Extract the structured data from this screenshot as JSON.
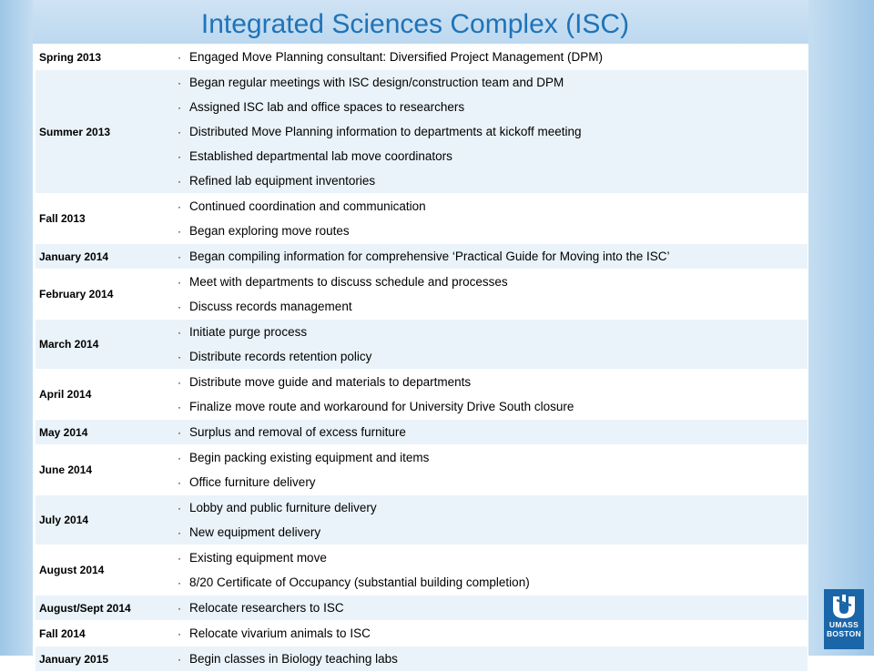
{
  "slide": {
    "title": "Integrated Sciences Complex (ISC)",
    "logo": {
      "line1": "UMASS",
      "line2": "BOSTON"
    }
  },
  "bullet_char": "·",
  "timeline": [
    {
      "period": "Spring 2013",
      "items": [
        "Engaged Move Planning consultant: Diversified Project Management (DPM)"
      ]
    },
    {
      "period": "Summer 2013",
      "items": [
        "Began regular meetings with ISC design/construction team and DPM",
        "Assigned ISC lab and office spaces to researchers",
        "Distributed Move Planning information to departments at kickoff meeting",
        "Established departmental lab move coordinators",
        "Refined lab equipment inventories"
      ]
    },
    {
      "period": "Fall 2013",
      "items": [
        "Continued coordination and communication",
        "Began exploring move routes"
      ]
    },
    {
      "period": "January 2014",
      "items": [
        "Began compiling information for comprehensive ‘Practical Guide for Moving into the ISC’"
      ]
    },
    {
      "period": "February 2014",
      "items": [
        "Meet with departments to discuss schedule and processes",
        "Discuss records management"
      ]
    },
    {
      "period": "March 2014",
      "items": [
        "Initiate purge process",
        "Distribute records retention policy"
      ]
    },
    {
      "period": "April 2014",
      "items": [
        "Distribute move guide and materials to departments",
        "Finalize move route and workaround for University Drive South closure"
      ]
    },
    {
      "period": "May 2014",
      "items": [
        "Surplus and removal of excess furniture"
      ]
    },
    {
      "period": "June 2014",
      "items": [
        "Begin packing existing equipment and items",
        "Office furniture delivery"
      ]
    },
    {
      "period": "July 2014",
      "items": [
        "Lobby and public furniture delivery",
        "New equipment delivery"
      ]
    },
    {
      "period": "August 2014",
      "items": [
        "Existing equipment move",
        "8/20 Certificate of Occupancy (substantial building completion)"
      ]
    },
    {
      "period": "August/Sept 2014",
      "items": [
        "Relocate researchers to ISC"
      ]
    },
    {
      "period": "Fall 2014",
      "items": [
        "Relocate vivarium animals to ISC"
      ]
    },
    {
      "period": "January 2015",
      "items": [
        "Begin classes in Biology teaching labs"
      ]
    }
  ]
}
